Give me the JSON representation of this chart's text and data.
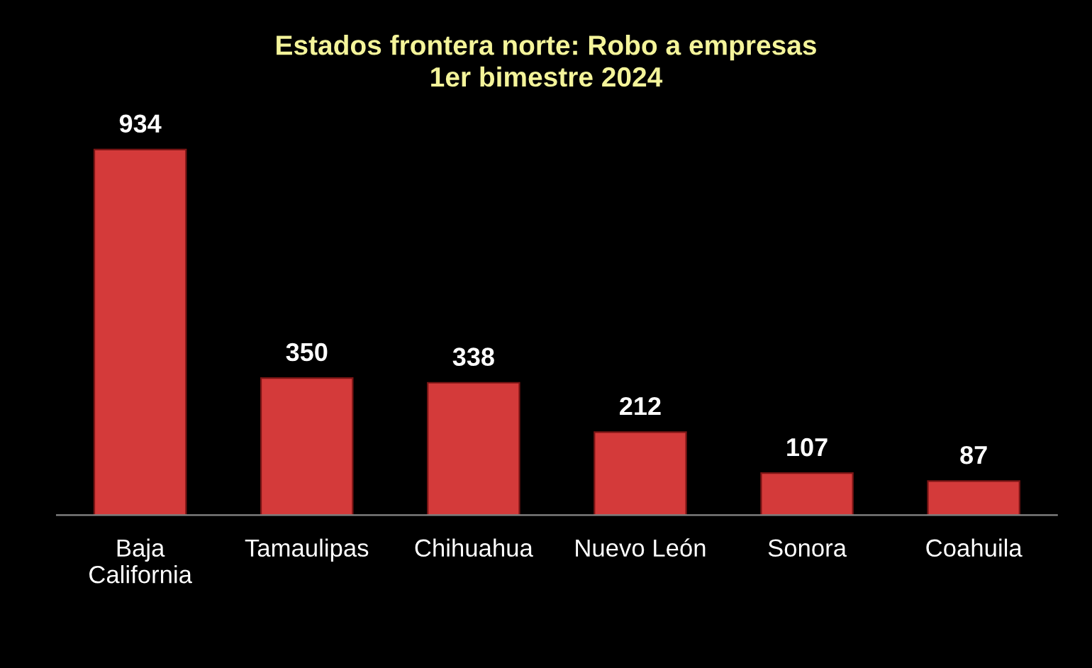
{
  "chart_data": {
    "type": "bar",
    "title": "Estados frontera norte: Robo a empresas\n1er bimestre 2024",
    "categories": [
      "Baja California",
      "Tamaulipas",
      "Chihuahua",
      "Nuevo León",
      "Sonora",
      "Coahuila"
    ],
    "values": [
      934,
      350,
      338,
      212,
      107,
      87
    ],
    "color": "#d43a3a",
    "data_labels": true,
    "grid": false,
    "legend": false
  }
}
